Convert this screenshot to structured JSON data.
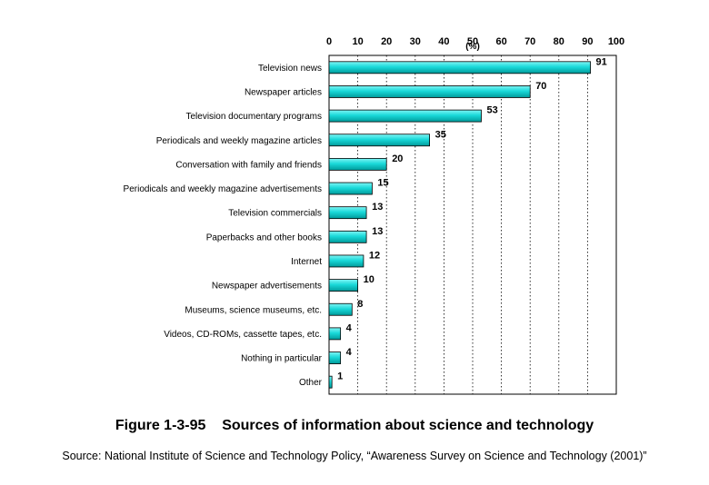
{
  "chart_data": {
    "type": "bar",
    "orientation": "horizontal",
    "unit_label": "(%)",
    "xlim": [
      0,
      100
    ],
    "x_ticks": [
      0,
      10,
      20,
      30,
      40,
      50,
      60,
      70,
      80,
      90,
      100
    ],
    "categories": [
      "Television news",
      "Newspaper articles",
      "Television documentary programs",
      "Periodicals and weekly magazine articles",
      "Conversation with family and friends",
      "Periodicals and weekly magazine advertisements",
      "Television commercials",
      "Paperbacks and other books",
      "Internet",
      "Newspaper advertisements",
      "Museums, science museums, etc.",
      "Videos, CD-ROMs, cassette tapes, etc.",
      "Nothing in particular",
      "Other"
    ],
    "values": [
      91,
      70,
      53,
      35,
      20,
      15,
      13,
      13,
      12,
      10,
      8,
      4,
      4,
      1
    ],
    "grid": "vertical dotted",
    "bar_color": "#00CCCC"
  },
  "figure": {
    "title": "Figure 1-3-95    Sources of information about science and technology",
    "source": "Source: National Institute of Science and Technology Policy, “Awareness Survey on Science and Technology (2001)”"
  }
}
